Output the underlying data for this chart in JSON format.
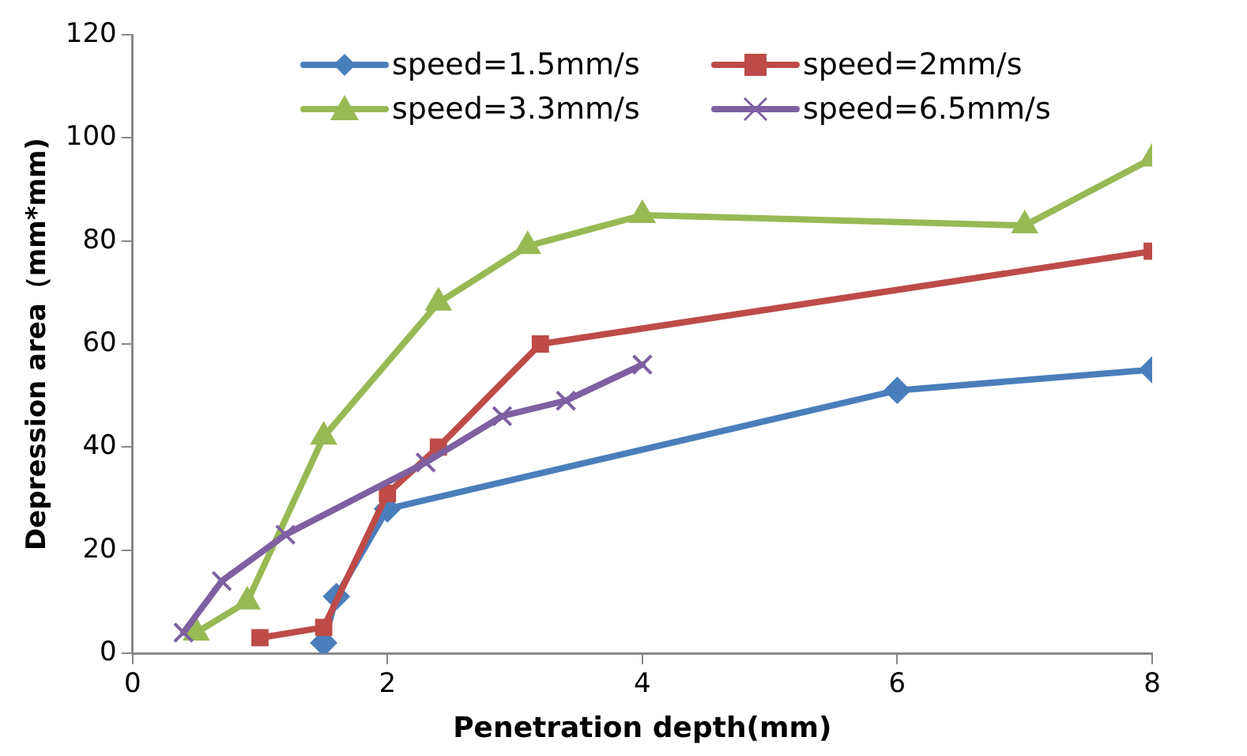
{
  "chart_data": {
    "type": "line",
    "xlabel": "Penetration depth(mm)",
    "ylabel": "Depression area（mm*mm)",
    "xlim": [
      0,
      8
    ],
    "xticks": [
      0,
      2,
      4,
      6,
      8
    ],
    "ylim": [
      0,
      120
    ],
    "yticks": [
      0,
      20,
      40,
      60,
      80,
      100,
      120
    ],
    "grid": false,
    "legend": "top",
    "series": [
      {
        "name": "speed=1.5mm/s",
        "color": "#4a7ebb",
        "marker": "diamond",
        "x": [
          1.5,
          1.6,
          2,
          6,
          8
        ],
        "values": [
          2,
          11,
          28,
          51,
          55
        ]
      },
      {
        "name": "speed=2mm/s",
        "color": "#be4b48",
        "marker": "square",
        "x": [
          1,
          1.5,
          2,
          2.4,
          3.2,
          8
        ],
        "values": [
          3,
          5,
          31,
          40,
          60,
          78
        ]
      },
      {
        "name": "speed=3.3mm/s",
        "color": "#98b954",
        "marker": "triangle",
        "x": [
          0.5,
          0.9,
          1.5,
          2.4,
          3.1,
          4,
          7,
          8
        ],
        "values": [
          4,
          10,
          42,
          68,
          79,
          85,
          83,
          96
        ]
      },
      {
        "name": "speed=6.5mm/s",
        "color": "#7d60a0",
        "marker": "cross",
        "x": [
          0.4,
          0.7,
          1.2,
          2.3,
          2.9,
          3.4,
          4
        ],
        "values": [
          4,
          14,
          23,
          37,
          46,
          49,
          56
        ]
      }
    ]
  }
}
